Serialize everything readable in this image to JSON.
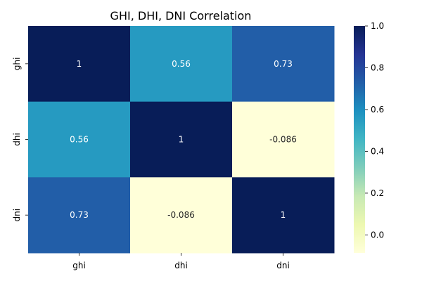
{
  "chart_data": {
    "type": "heatmap",
    "title": "GHI, DHI, DNI Correlation",
    "x_categories": [
      "ghi",
      "dhi",
      "dni"
    ],
    "y_categories": [
      "ghi",
      "dhi",
      "dni"
    ],
    "values": [
      [
        1,
        0.56,
        0.73
      ],
      [
        0.56,
        1,
        -0.086
      ],
      [
        0.73,
        -0.086,
        1
      ]
    ],
    "annotations": [
      [
        "1",
        "0.56",
        "0.73"
      ],
      [
        "0.56",
        "1",
        "-0.086"
      ],
      [
        "0.73",
        "-0.086",
        "1"
      ]
    ],
    "colormap": "YlGnBu",
    "vmin": -0.086,
    "vmax": 1,
    "colorbar_ticks": [
      0.0,
      0.2,
      0.4,
      0.6,
      0.8,
      1.0
    ],
    "colorbar_tick_labels": [
      "0.0",
      "0.2",
      "0.4",
      "0.6",
      "0.8",
      "1.0"
    ],
    "legend": "colorbar-right",
    "grid": false
  }
}
